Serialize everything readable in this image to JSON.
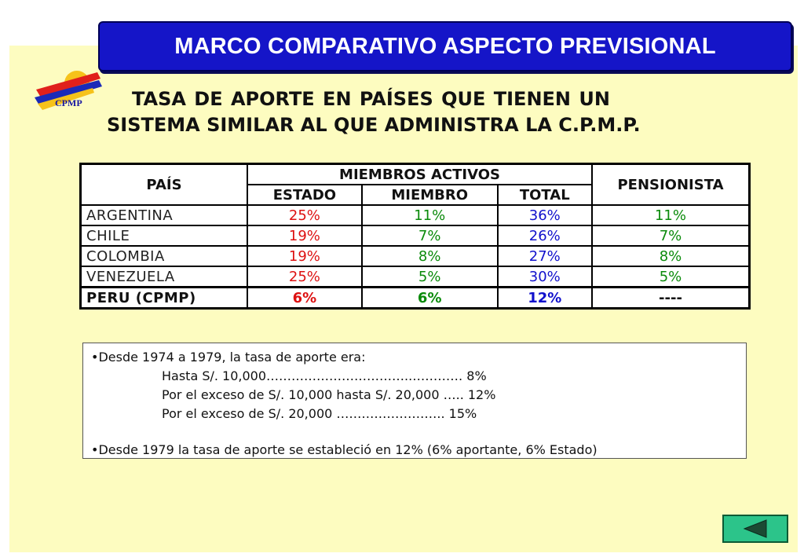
{
  "header": {
    "title": "MARCO COMPARATIVO ASPECTO PREVISIONAL"
  },
  "logo": {
    "text": "CPMP"
  },
  "subtitle": {
    "line1": "TASA DE APORTE    EN PAÍSES QUE TIENEN UN",
    "line2": "SISTEMA SIMILAR AL QUE ADMINISTRA LA C.P.M.P."
  },
  "table": {
    "col_pais": "PAÍS",
    "group_label": "MIEMBROS ACTIVOS",
    "col_estado": "ESTADO",
    "col_miembro": "MIEMBRO",
    "col_total": "TOTAL",
    "col_pensionista": "PENSIONISTA",
    "rows": [
      {
        "country": "ARGENTINA",
        "estado": "25%",
        "miembro": "11%",
        "total": "36%",
        "pensionista": "11%"
      },
      {
        "country": "CHILE",
        "estado": "19%",
        "miembro": "7%",
        "total": "26%",
        "pensionista": "7%"
      },
      {
        "country": "COLOMBIA",
        "estado": "19%",
        "miembro": "8%",
        "total": "27%",
        "pensionista": "8%"
      },
      {
        "country": "VENEZUELA",
        "estado": "25%",
        "miembro": "5%",
        "total": "30%",
        "pensionista": "5%"
      },
      {
        "country": "PERU (CPMP)",
        "estado": "6%",
        "miembro": "6%",
        "total": "12%",
        "pensionista": "----"
      }
    ]
  },
  "notes": {
    "line1": "•Desde 1974 a 1979, la tasa de aporte era:",
    "line2": "Hasta S/. 10,000……………………………..………… 8%",
    "line3": "Por el exceso de S/. 10,000 hasta S/. 20,000 ….. 12%",
    "line4": "Por el exceso de S/. 20,000 ……………………..   15%",
    "line5": "•Desde 1979 la tasa de aporte se estableció en 12%  (6% aportante, 6% Estado)"
  },
  "nav": {
    "back_icon": "triangle-left-icon"
  },
  "colors": {
    "header_bg": "#1515c8",
    "slide_bg": "#fdfcc0",
    "estado": "#dd1111",
    "miembro": "#0a8a0a",
    "total": "#1111cc",
    "back_button": "#2cc48a"
  }
}
